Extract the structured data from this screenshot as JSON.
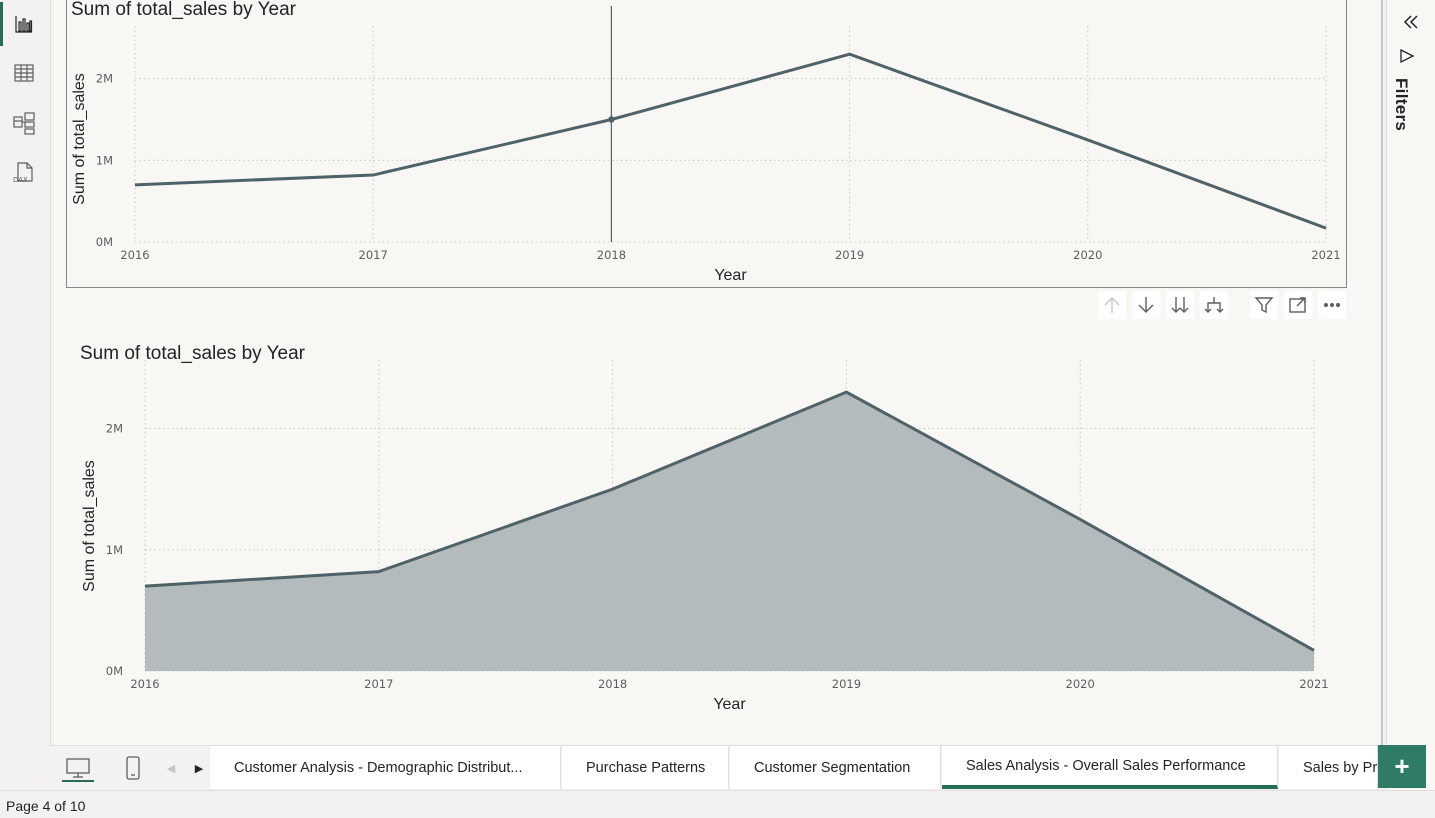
{
  "left_nav": {
    "items": [
      {
        "name": "report-view-button",
        "icon": "bar-chart-icon",
        "active": true
      },
      {
        "name": "table-view-button",
        "icon": "table-icon",
        "active": false
      },
      {
        "name": "model-view-button",
        "icon": "model-icon",
        "active": false
      },
      {
        "name": "dax-query-view-button",
        "icon": "dax-icon",
        "label": "DAX",
        "active": false
      }
    ]
  },
  "filters_pane": {
    "label": "Filters",
    "collapse_icon": "double-chevron-left-icon",
    "filter_icon": "funnel-icon"
  },
  "visual_toolbar": {
    "buttons": [
      {
        "name": "drill-up-button",
        "icon": "arrow-up-icon",
        "enabled": false
      },
      {
        "name": "drill-down-button",
        "icon": "arrow-down-icon",
        "enabled": true
      },
      {
        "name": "next-level-button",
        "icon": "double-arrow-down-icon",
        "enabled": true
      },
      {
        "name": "expand-hierarchy-button",
        "icon": "fork-down-icon",
        "enabled": true
      },
      {
        "name": "filter-button",
        "icon": "funnel-icon",
        "enabled": true
      },
      {
        "name": "focus-mode-button",
        "icon": "focus-mode-icon",
        "enabled": true
      },
      {
        "name": "more-options-button",
        "icon": "ellipsis-icon",
        "enabled": true
      }
    ]
  },
  "chart_data": [
    {
      "type": "line",
      "title": "Sum of total_sales by Year",
      "xlabel": "Year",
      "ylabel": "Sum of total_sales",
      "x": [
        "2016",
        "2017",
        "2018",
        "2019",
        "2020",
        "2021"
      ],
      "series": [
        {
          "values": [
            700000,
            820000,
            1500000,
            2300000,
            1250000,
            170000
          ],
          "color": "#4e6369"
        }
      ],
      "yticks": [
        "0M",
        "1M",
        "2M"
      ],
      "ylim": [
        0,
        2400000
      ],
      "grid": true,
      "hover_category": "2018"
    },
    {
      "type": "area",
      "title": "Sum of total_sales by Year",
      "xlabel": "Year",
      "ylabel": "Sum of total_sales",
      "x": [
        "2016",
        "2017",
        "2018",
        "2019",
        "2020",
        "2021"
      ],
      "series": [
        {
          "values": [
            700000,
            820000,
            1500000,
            2300000,
            1250000,
            170000
          ],
          "color": "#4e6369",
          "fill": "#b3bbbc"
        }
      ],
      "yticks": [
        "0M",
        "1M",
        "2M"
      ],
      "ylim": [
        0,
        2400000
      ],
      "grid": true
    }
  ],
  "tab_bar": {
    "desktop_icon": "monitor-icon",
    "mobile_icon": "phone-icon",
    "prev_arrow": "◀",
    "next_arrow": "▶",
    "tabs": [
      {
        "label": "Customer Analysis - Demographic Distribut...",
        "active": false
      },
      {
        "label": "Purchase Patterns",
        "active": false
      },
      {
        "label": "Customer Segmentation",
        "active": false
      },
      {
        "label": "Sales Analysis - Overall Sales Performance",
        "active": true
      },
      {
        "label": "Sales by Pro",
        "active": false
      }
    ],
    "add_label": "+"
  },
  "status_bar": {
    "page_indicator": "Page 4 of 10"
  },
  "colors": {
    "accent": "#256c5a",
    "add_button": "#2e7c68",
    "line": "#4e6369",
    "area_fill": "#b3bbbc"
  }
}
